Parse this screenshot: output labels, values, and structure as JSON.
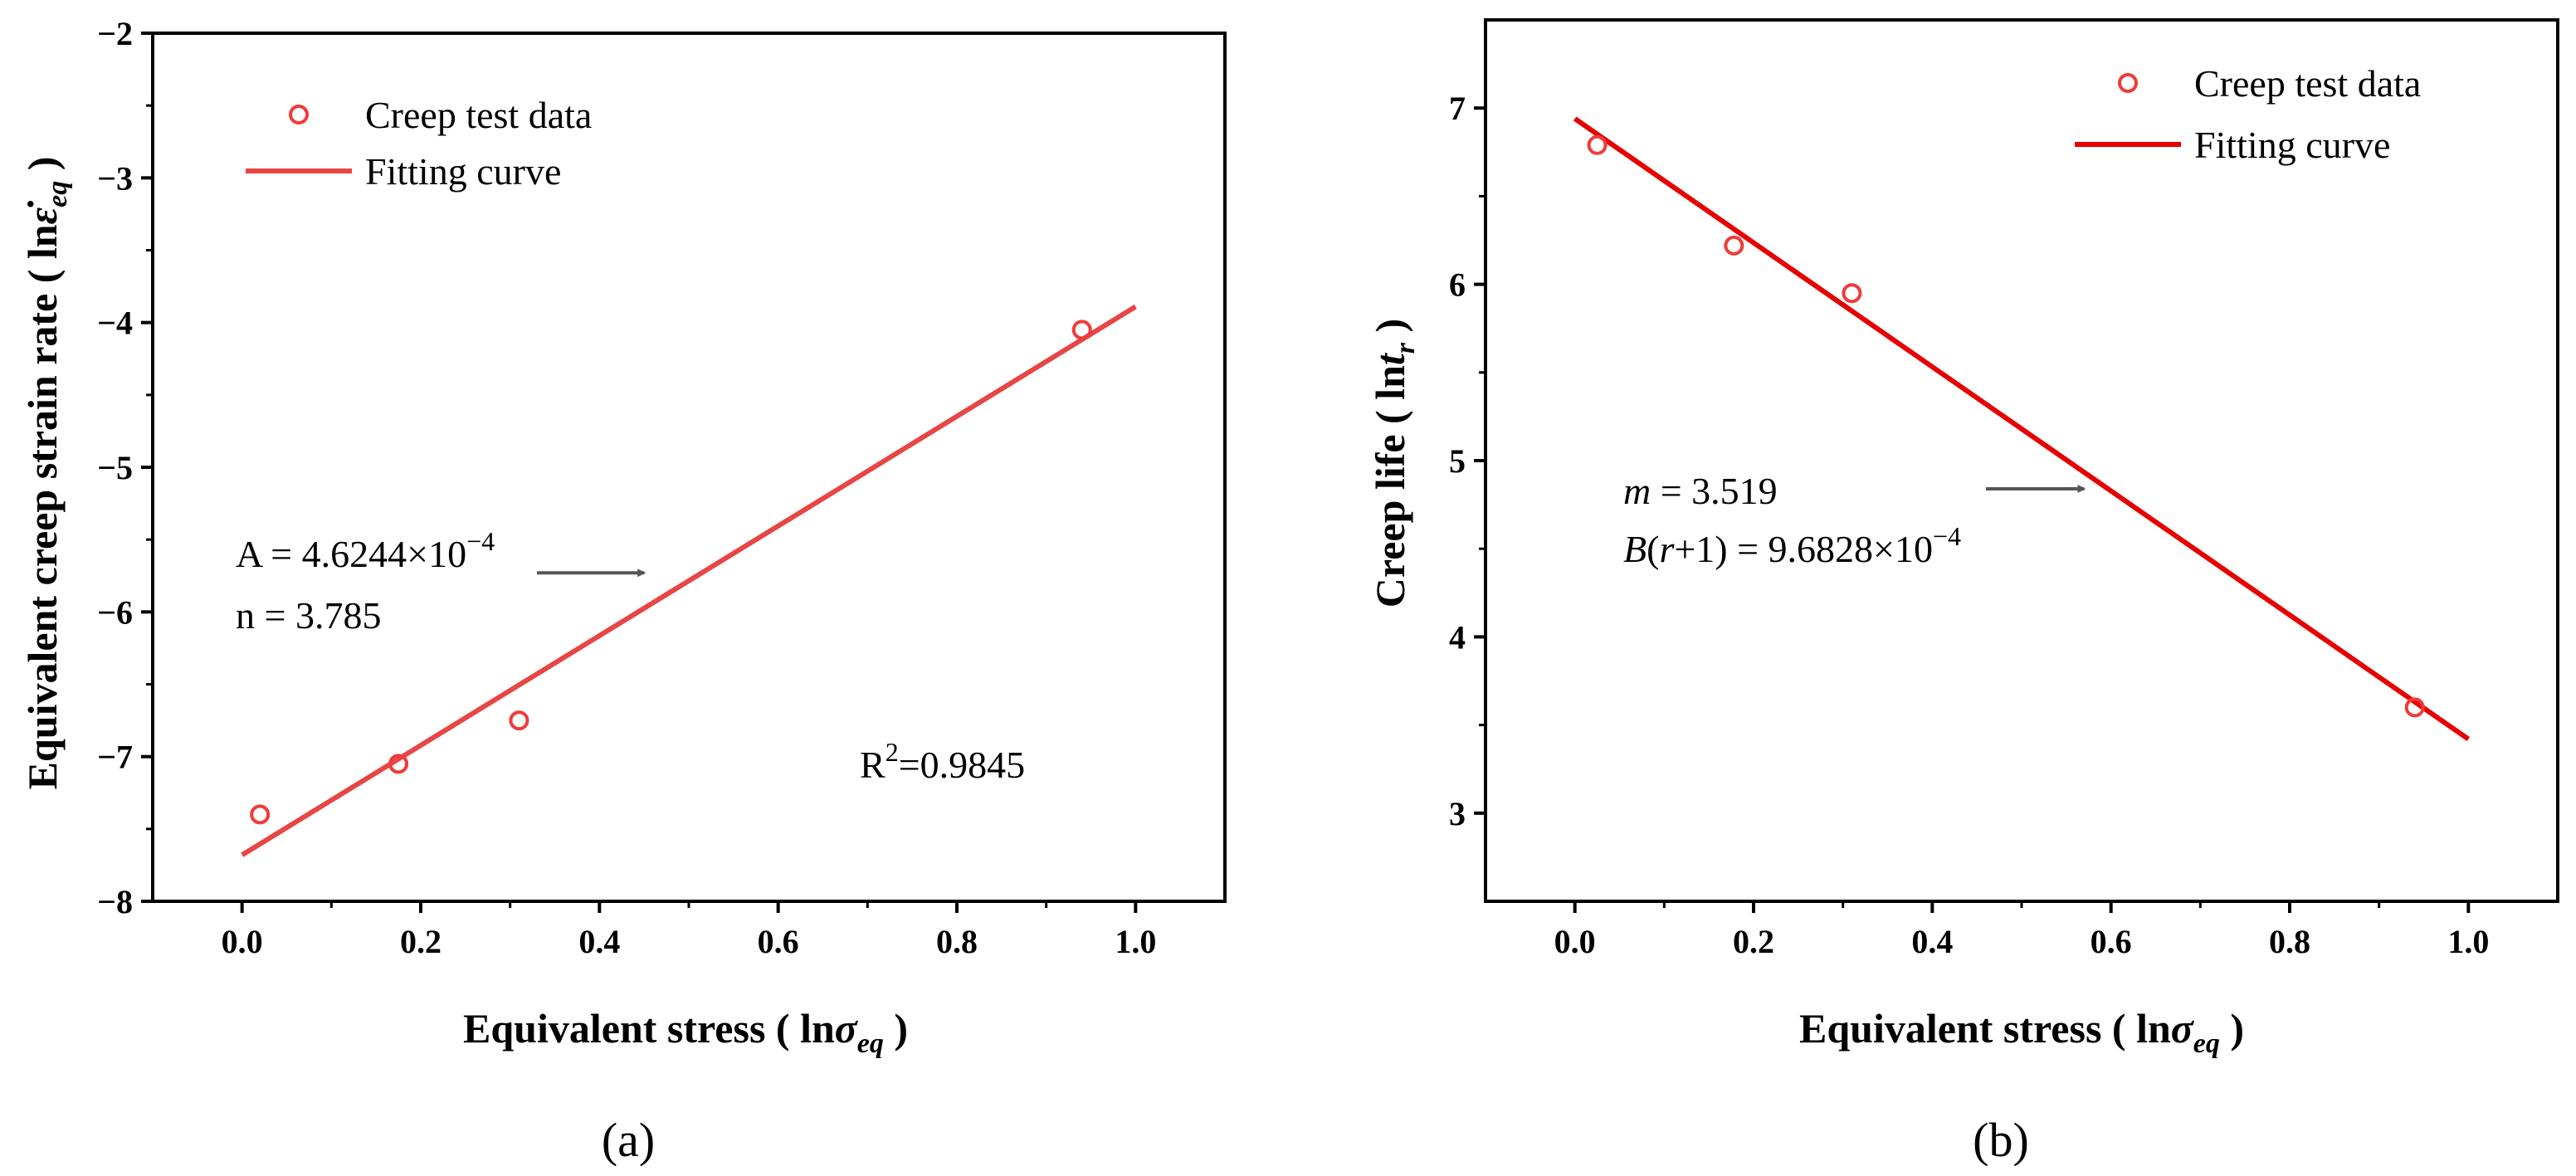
{
  "colors": {
    "panel_a_marker": "#ef3b3b",
    "panel_a_line": "#e84545",
    "panel_b_marker": "#ef3b3b",
    "panel_b_line": "#e60000",
    "arrow": "#555555",
    "axis": "#000000"
  },
  "chart_data": [
    {
      "type": "scatter",
      "panel_label": "(a)",
      "title": "",
      "xlabel_main": "Equivalent stress ( ln",
      "xlabel_sym": "σ",
      "xlabel_sub": "eq",
      "xlabel_end": " )",
      "ylabel_main": "Equivalent creep strain rate ( ln",
      "ylabel_sym": "ε̇",
      "ylabel_sub": "eq",
      "ylabel_end": " )",
      "xlim": [
        -0.1,
        1.1
      ],
      "ylim": [
        -8,
        -2
      ],
      "xticks": [
        0.0,
        0.2,
        0.4,
        0.6,
        0.8,
        1.0
      ],
      "xtick_labels": [
        "0.0",
        "0.2",
        "0.4",
        "0.6",
        "0.8",
        "1.0"
      ],
      "yticks": [
        -8,
        -7,
        -6,
        -5,
        -4,
        -3,
        -2
      ],
      "ytick_labels": [
        "−8",
        "−7",
        "−6",
        "−5",
        "−4",
        "−3",
        "−2"
      ],
      "series": [
        {
          "name": "Creep test data",
          "kind": "points",
          "x": [
            0.02,
            0.175,
            0.31,
            0.94
          ],
          "y": [
            -7.4,
            -7.05,
            -6.75,
            -4.05
          ]
        },
        {
          "name": "Fitting curve",
          "kind": "line",
          "x": [
            0.0,
            1.0
          ],
          "y": [
            -7.68,
            -3.89
          ]
        }
      ],
      "legend": [
        "Creep test data",
        "Fitting curve"
      ],
      "legend_position": "top-left",
      "annotation_lines": [
        "A = 4.6244×10",
        "−4",
        "n = 3.785"
      ],
      "r2_label": "R",
      "r2_exp": "2",
      "r2_value": "=0.9845",
      "arrow_from": [
        0.33,
        -5.73
      ],
      "arrow_to": [
        0.45,
        -5.73
      ]
    },
    {
      "type": "scatter",
      "panel_label": "(b)",
      "title": "",
      "xlabel_main": "Equivalent stress ( ln",
      "xlabel_sym": "σ",
      "xlabel_sub": "eq",
      "xlabel_end": " )",
      "ylabel_main": "Creep life ( ln",
      "ylabel_sym": "t",
      "ylabel_sub": "r",
      "ylabel_end": " )",
      "xlim": [
        -0.1,
        1.1
      ],
      "ylim": [
        2.5,
        7.5
      ],
      "xticks": [
        0.0,
        0.2,
        0.4,
        0.6,
        0.8,
        1.0
      ],
      "xtick_labels": [
        "0.0",
        "0.2",
        "0.4",
        "0.6",
        "0.8",
        "1.0"
      ],
      "yticks": [
        3,
        4,
        5,
        6,
        7
      ],
      "ytick_labels": [
        "3",
        "4",
        "5",
        "6",
        "7"
      ],
      "series": [
        {
          "name": "Creep test data",
          "kind": "points",
          "x": [
            0.025,
            0.178,
            0.31,
            0.94
          ],
          "y": [
            6.79,
            6.22,
            5.95,
            3.6
          ]
        },
        {
          "name": "Fitting curve",
          "kind": "line",
          "x": [
            0.0,
            1.0
          ],
          "y": [
            6.94,
            3.42
          ]
        }
      ],
      "legend": [
        "Creep test data",
        "Fitting curve"
      ],
      "legend_position": "top-right",
      "annotation_m_sym": "m",
      "annotation_m_val": " = 3.519",
      "annotation_b_sym": "B",
      "annotation_b_mid": "(",
      "annotation_b_r": "r",
      "annotation_b_val": "+1) = 9.6828×10",
      "annotation_b_exp": "−4",
      "arrow_from": [
        0.46,
        4.84
      ],
      "arrow_to": [
        0.57,
        4.84
      ]
    }
  ]
}
